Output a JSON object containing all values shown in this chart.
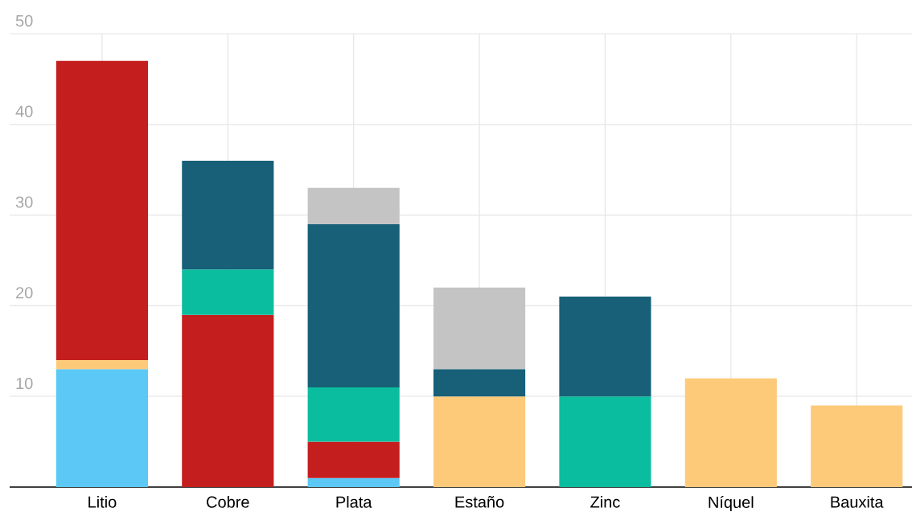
{
  "chart_data": {
    "type": "bar",
    "stacked": true,
    "categories": [
      "Litio",
      "Cobre",
      "Plata",
      "Estaño",
      "Zinc",
      "Níquel",
      "Bauxita"
    ],
    "series": [
      {
        "color": "#5bc8f5",
        "values": [
          13,
          null,
          1,
          null,
          null,
          null,
          null
        ]
      },
      {
        "color": "#fdca7a",
        "values": [
          1,
          null,
          null,
          10,
          null,
          12,
          9
        ]
      },
      {
        "color": "#c41e1e",
        "values": [
          33,
          19,
          4,
          null,
          null,
          null,
          null
        ]
      },
      {
        "color": "#0bbd9f",
        "values": [
          null,
          5,
          6,
          null,
          10,
          null,
          null
        ]
      },
      {
        "color": "#176078",
        "values": [
          null,
          12,
          18,
          3,
          11,
          null,
          null
        ]
      },
      {
        "color": "#c4c4c4",
        "values": [
          null,
          null,
          4,
          9,
          null,
          null,
          null
        ]
      }
    ],
    "ylim": [
      0,
      50
    ],
    "yticks": [
      10,
      20,
      30,
      40,
      50
    ],
    "grid": true
  }
}
